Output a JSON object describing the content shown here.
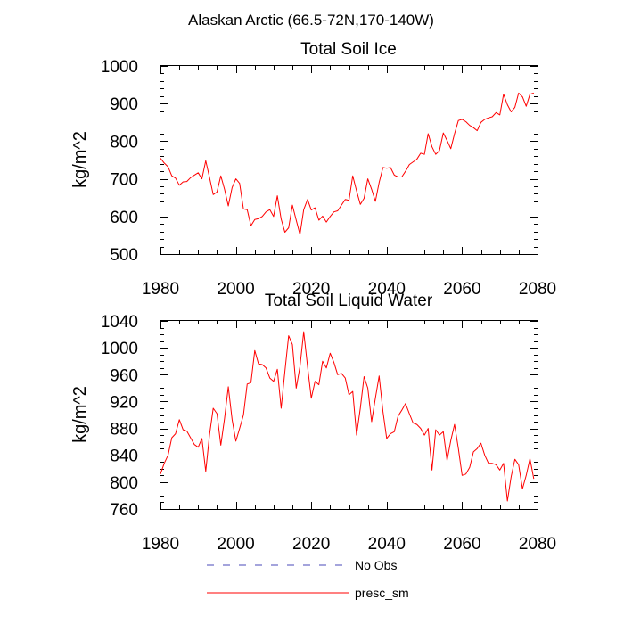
{
  "figure_title": "Alaskan Arctic (66.5-72N,170-140W)",
  "legend": [
    {
      "label": "No Obs",
      "color": "#4a4ab8",
      "dash": true
    },
    {
      "label": "presc_sm",
      "color": "#ff0000",
      "dash": false
    }
  ],
  "chart_data": [
    {
      "type": "line",
      "title": "Total Soil Ice",
      "xlabel": "",
      "ylabel": "kg/m^2",
      "xlim": [
        1980,
        2080
      ],
      "ylim": [
        500,
        1000
      ],
      "xticks": [
        1980,
        2000,
        2020,
        2040,
        2060,
        2080
      ],
      "yticks": [
        500,
        600,
        700,
        800,
        900,
        1000
      ],
      "x_minor_step": 5,
      "y_minor_step": 20,
      "series": [
        {
          "name": "presc_sm",
          "color": "#ff0000",
          "x": [
            1980,
            1981,
            1982,
            1983,
            1984,
            1985,
            1986,
            1987,
            1988,
            1989,
            1990,
            1991,
            1992,
            1993,
            1994,
            1995,
            1996,
            1997,
            1998,
            1999,
            2000,
            2001,
            2002,
            2003,
            2004,
            2005,
            2006,
            2007,
            2008,
            2009,
            2010,
            2011,
            2012,
            2013,
            2014,
            2015,
            2016,
            2017,
            2018,
            2019,
            2020,
            2021,
            2022,
            2023,
            2024,
            2025,
            2026,
            2027,
            2028,
            2029,
            2030,
            2031,
            2032,
            2033,
            2034,
            2035,
            2036,
            2037,
            2038,
            2039,
            2040,
            2041,
            2042,
            2043,
            2044,
            2045,
            2046,
            2047,
            2048,
            2049,
            2050,
            2051,
            2052,
            2053,
            2054,
            2055,
            2056,
            2057,
            2058,
            2059,
            2060,
            2061,
            2062,
            2063,
            2064,
            2065,
            2066,
            2067,
            2068,
            2069,
            2070,
            2071,
            2072,
            2073,
            2074,
            2075,
            2076,
            2077,
            2078,
            2079
          ],
          "values": [
            755,
            742,
            732,
            708,
            702,
            683,
            692,
            693,
            703,
            710,
            716,
            700,
            748,
            704,
            658,
            665,
            708,
            672,
            628,
            677,
            700,
            688,
            620,
            618,
            575,
            592,
            594,
            600,
            612,
            618,
            600,
            655,
            593,
            558,
            570,
            630,
            590,
            552,
            618,
            645,
            617,
            623,
            590,
            601,
            585,
            600,
            612,
            615,
            630,
            645,
            643,
            708,
            668,
            632,
            648,
            700,
            672,
            640,
            690,
            730,
            728,
            730,
            710,
            705,
            705,
            720,
            738,
            745,
            752,
            768,
            765,
            820,
            785,
            765,
            775,
            822,
            802,
            780,
            820,
            855,
            858,
            852,
            842,
            836,
            828,
            850,
            858,
            862,
            865,
            876,
            870,
            925,
            897,
            878,
            890,
            928,
            918,
            893,
            925,
            928
          ]
        }
      ]
    },
    {
      "type": "line",
      "title": "Total Soil Liquid Water",
      "xlabel": "",
      "ylabel": "kg/m^2",
      "xlim": [
        1980,
        2080
      ],
      "ylim": [
        760,
        1040
      ],
      "xticks": [
        1980,
        2000,
        2020,
        2040,
        2060,
        2080
      ],
      "yticks": [
        760,
        800,
        840,
        880,
        920,
        960,
        1000,
        1040
      ],
      "x_minor_step": 5,
      "y_minor_step": 10,
      "series": [
        {
          "name": "presc_sm",
          "color": "#ff0000",
          "x": [
            1980,
            1981,
            1982,
            1983,
            1984,
            1985,
            1986,
            1987,
            1988,
            1989,
            1990,
            1991,
            1992,
            1993,
            1994,
            1995,
            1996,
            1997,
            1998,
            1999,
            2000,
            2001,
            2002,
            2003,
            2004,
            2005,
            2006,
            2007,
            2008,
            2009,
            2010,
            2011,
            2012,
            2013,
            2014,
            2015,
            2016,
            2017,
            2018,
            2019,
            2020,
            2021,
            2022,
            2023,
            2024,
            2025,
            2026,
            2027,
            2028,
            2029,
            2030,
            2031,
            2032,
            2033,
            2034,
            2035,
            2036,
            2037,
            2038,
            2039,
            2040,
            2041,
            2042,
            2043,
            2044,
            2045,
            2046,
            2047,
            2048,
            2049,
            2050,
            2051,
            2052,
            2053,
            2054,
            2055,
            2056,
            2057,
            2058,
            2059,
            2060,
            2061,
            2062,
            2063,
            2064,
            2065,
            2066,
            2067,
            2068,
            2069,
            2070,
            2071,
            2072,
            2073,
            2074,
            2075,
            2076,
            2077,
            2078,
            2079
          ],
          "values": [
            812,
            828,
            840,
            866,
            872,
            893,
            878,
            876,
            866,
            856,
            852,
            865,
            816,
            870,
            910,
            902,
            855,
            895,
            942,
            893,
            861,
            880,
            900,
            946,
            948,
            996,
            976,
            975,
            970,
            955,
            950,
            968,
            910,
            965,
            1018,
            1005,
            940,
            972,
            1024,
            972,
            925,
            950,
            945,
            980,
            970,
            992,
            978,
            960,
            962,
            955,
            930,
            935,
            870,
            910,
            957,
            940,
            890,
            925,
            958,
            905,
            865,
            872,
            875,
            898,
            907,
            917,
            902,
            888,
            886,
            880,
            870,
            880,
            818,
            878,
            870,
            875,
            832,
            862,
            886,
            850,
            810,
            812,
            822,
            845,
            850,
            858,
            840,
            828,
            828,
            826,
            818,
            828,
            772,
            808,
            834,
            826,
            790,
            810,
            835,
            805
          ]
        }
      ]
    }
  ]
}
